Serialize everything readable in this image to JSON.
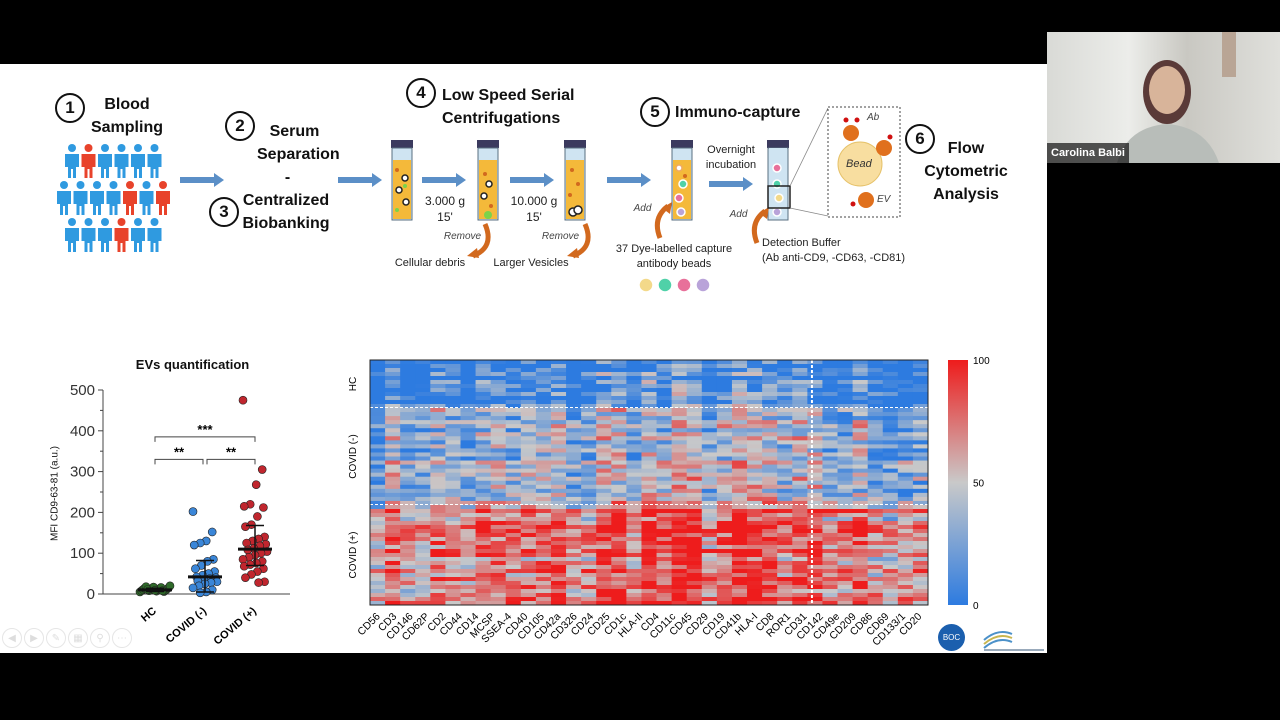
{
  "participant": {
    "name": "Carolina Balbi"
  },
  "workflow": {
    "steps": [
      {
        "num": "1",
        "label": "Blood Sampling"
      },
      {
        "num": "2",
        "label": "Serum Separation"
      },
      {
        "num": "3",
        "label": "Centralized Biobanking"
      },
      {
        "num": "4",
        "label": "Low Speed Serial Centrifugations"
      },
      {
        "num": "5",
        "label": "Immuno-capture"
      },
      {
        "num": "6",
        "label": "Flow Cytometric Analysis"
      }
    ],
    "dash": "-",
    "spin1": {
      "speed": "3.000 g",
      "time": "15'"
    },
    "spin2": {
      "speed": "10.000 g",
      "time": "15'"
    },
    "remove": "Remove",
    "debris": "Cellular debris",
    "vesicles": "Larger Vesicles",
    "incubation": "Overnight incubation",
    "add": "Add",
    "beads": "37 Dye-labelled capture antibody beads",
    "detection": "Detection Buffer",
    "detection_ab": "(Ab anti-CD9, -CD63, -CD81)",
    "zoom_labels": {
      "ab": "Ab",
      "bead": "Bead",
      "ev": "EV"
    },
    "bead_colors": [
      "#f3d98a",
      "#4fd1a8",
      "#e8709a",
      "#b9a3d9"
    ]
  },
  "chart_data": [
    {
      "type": "scatter",
      "title": "EVs quantification",
      "ylabel": "MFI CD9-63-81 (a.u.)",
      "categories": [
        "HC",
        "COVID (-)",
        "COVID (+)"
      ],
      "ylim": [
        0,
        500
      ],
      "yticks": [
        0,
        100,
        200,
        300,
        400,
        500
      ],
      "colors": [
        "#2f6b2a",
        "#3a86d8",
        "#c0262e"
      ],
      "series": [
        {
          "values": [
            5,
            6,
            7,
            8,
            8,
            9,
            10,
            10,
            11,
            12,
            12,
            13,
            14,
            15,
            16,
            17,
            18,
            20,
            8,
            9,
            11
          ]
        },
        {
          "values": [
            202,
            152,
            130,
            125,
            120,
            85,
            80,
            70,
            62,
            55,
            50,
            46,
            42,
            40,
            38,
            35,
            32,
            30,
            28,
            25,
            20,
            15,
            10,
            5,
            3
          ]
        },
        {
          "values": [
            475,
            305,
            268,
            220,
            215,
            212,
            190,
            170,
            165,
            140,
            135,
            130,
            125,
            122,
            118,
            112,
            108,
            104,
            100,
            95,
            90,
            85,
            80,
            76,
            72,
            68,
            62,
            55,
            48,
            40,
            30,
            28
          ]
        }
      ],
      "means": [
        10,
        42,
        110
      ],
      "error": [
        [
          6,
          14
        ],
        [
          5,
          82
        ],
        [
          70,
          168
        ]
      ],
      "significance": [
        {
          "pair": [
            "HC",
            "COVID (-)"
          ],
          "label": "**"
        },
        {
          "pair": [
            "COVID (-)",
            "COVID (+)"
          ],
          "label": "**"
        },
        {
          "pair": [
            "HC",
            "COVID (+)"
          ],
          "label": "***"
        }
      ]
    },
    {
      "type": "heatmap",
      "row_groups": [
        "HC",
        "COVID (-)",
        "COVID (+)"
      ],
      "columns": [
        "CD56",
        "CD3",
        "CD146",
        "CD62P",
        "CD2",
        "CD44",
        "CD14",
        "MCSP",
        "SSEA-4",
        "CD40",
        "CD105",
        "CD42a",
        "CD326",
        "CD24",
        "CD25",
        "CD1c",
        "HLA-II",
        "CD4",
        "CD11c",
        "CD45",
        "CD29",
        "CD19",
        "CD41b",
        "HLA-I",
        "CD8",
        "ROR1",
        "CD31",
        "CD142",
        "CD49e",
        "CD209",
        "CD86",
        "CD69",
        "CD133/1",
        "CD20"
      ],
      "color_scale": {
        "min": 0,
        "mid": 50,
        "max": 100,
        "colors": [
          "#2d7be0",
          "#c9c9c9",
          "#ee1c1c"
        ],
        "tick_labels": [
          "0",
          "50",
          "100"
        ]
      }
    }
  ],
  "logos": {
    "boc": "BOC"
  }
}
